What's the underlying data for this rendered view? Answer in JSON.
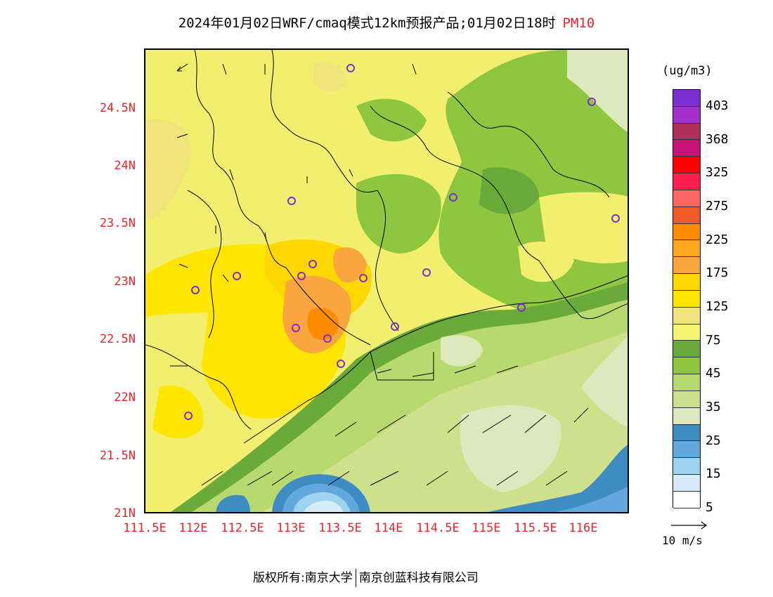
{
  "title": {
    "main": "2024年01月02日WRF/cmaq模式12km预报产品;01月02日18时",
    "pollutant": "PM10"
  },
  "y_ticks": [
    "24.5N",
    "24N",
    "23.5N",
    "23N",
    "22.5N",
    "22N",
    "21.5N",
    "21N"
  ],
  "x_ticks": [
    "111.5E",
    "112E",
    "112.5E",
    "113E",
    "113.5E",
    "114E",
    "114.5E",
    "115E",
    "115.5E",
    "116E"
  ],
  "colorbar": {
    "units": "(ug/m3)",
    "labels": [
      "403",
      "368",
      "325",
      "275",
      "225",
      "175",
      "125",
      "75",
      "45",
      "35",
      "25",
      "15",
      "5"
    ],
    "colors": [
      "#7b2fd0",
      "#a331c9",
      "#b0305c",
      "#c8147a",
      "#ff0000",
      "#ff1f4e",
      "#ff6464",
      "#f05a28",
      "#ff8c00",
      "#ffa621",
      "#f9a640",
      "#ffd700",
      "#ffe600",
      "#f0e47a",
      "#f5f570",
      "#6aaa3a",
      "#8ec63f",
      "#b8d96e",
      "#cfe08c",
      "#dde8bd",
      "#3f8bc4",
      "#62a8dc",
      "#9fd4f1",
      "#d4edf9",
      "#ffffff"
    ]
  },
  "wind_reference": "10 m/s",
  "footer": {
    "left": "版权所有:南京大学",
    "right": "南京创蓝科技有限公司"
  },
  "colors": {
    "tick_label": "#e8262c",
    "title_pollutant": "#e8262c"
  }
}
